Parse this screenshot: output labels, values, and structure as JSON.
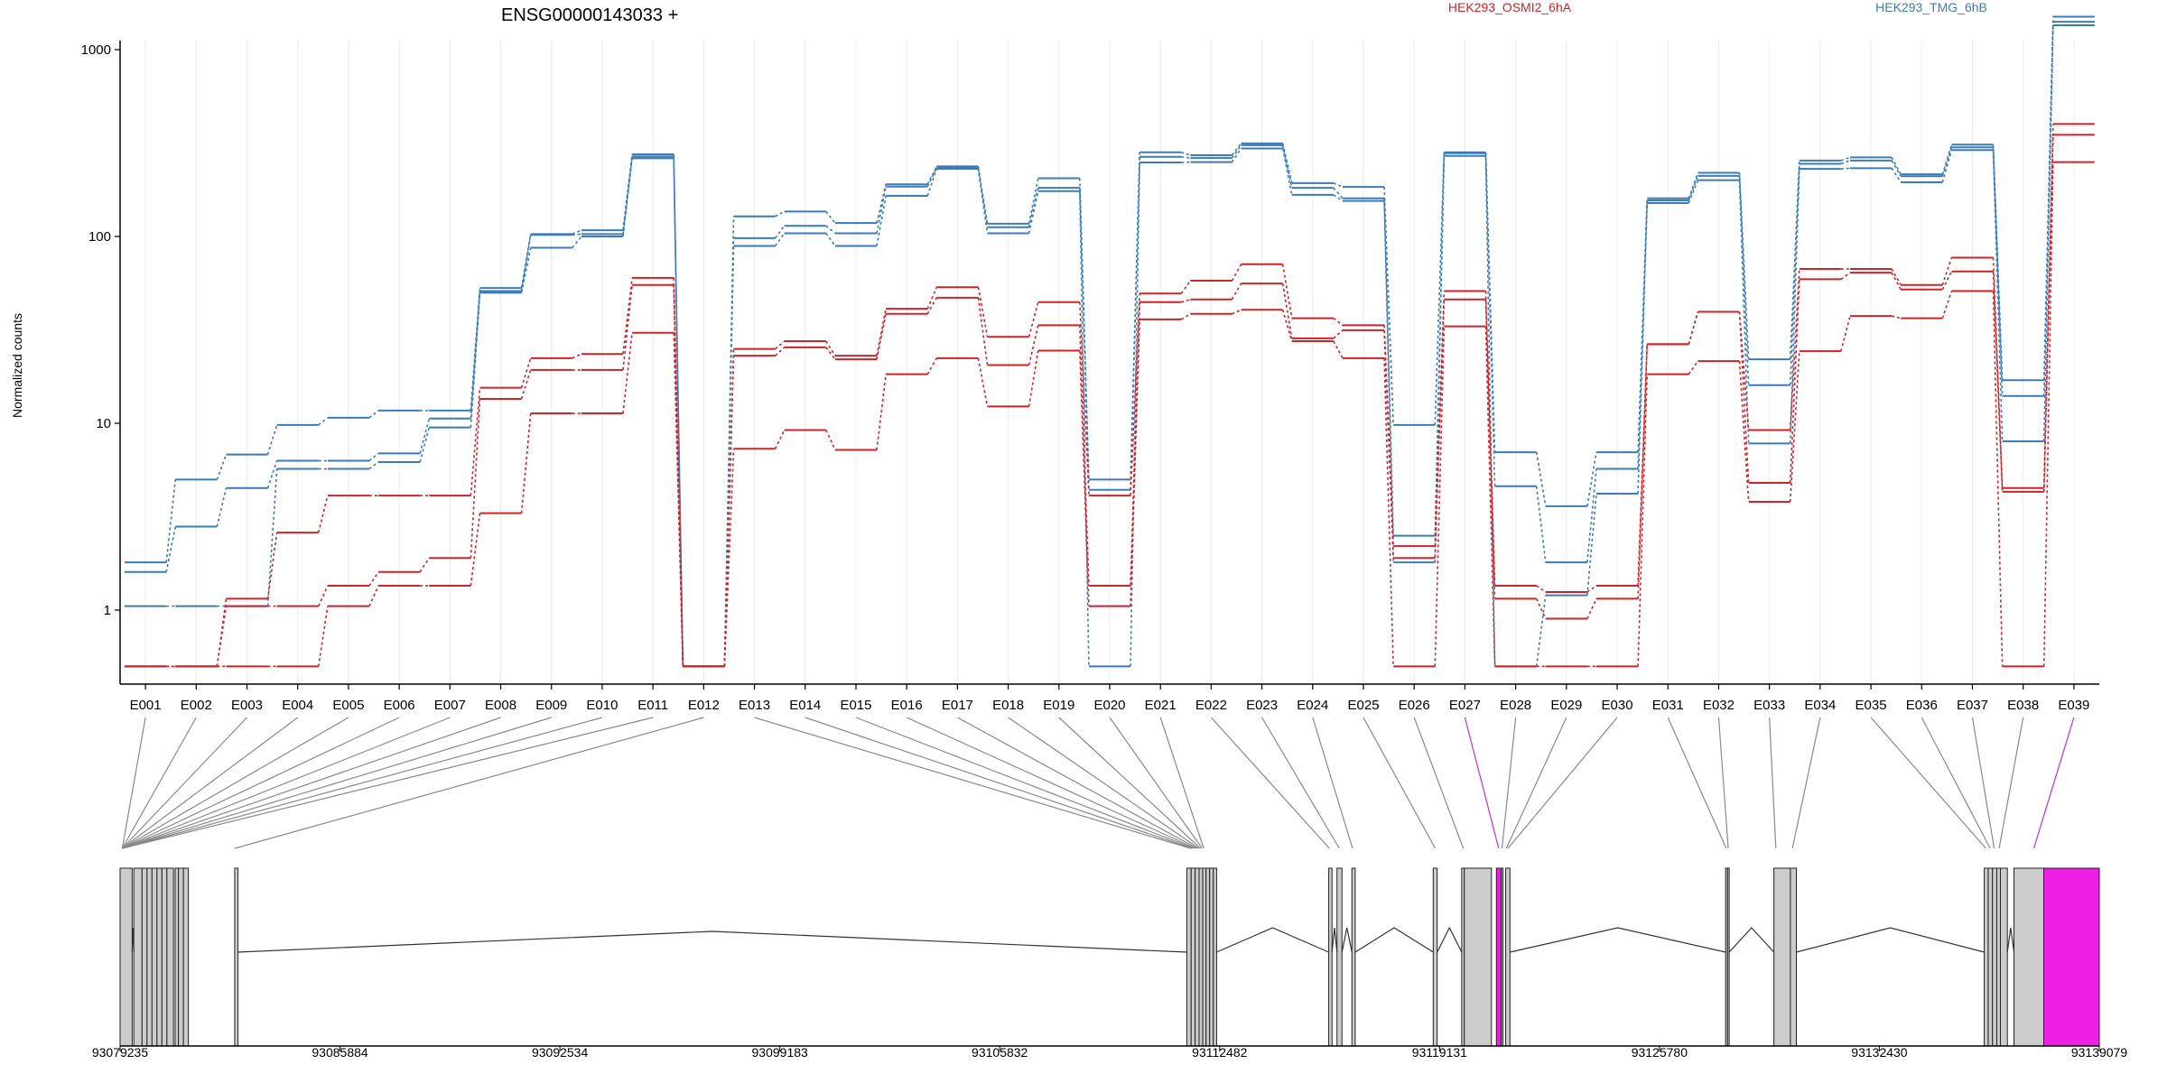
{
  "chart_data": {
    "type": "line",
    "title": "ENSG00000143033 +",
    "ylabel": "Normalized counts",
    "xlabel": "",
    "y_scale": "log",
    "y_ticks": [
      1,
      10,
      100,
      1000
    ],
    "y_tick_labels": [
      "1",
      "10",
      "100",
      "1000"
    ],
    "grid": "vertical",
    "legend_placement": "top",
    "categories": [
      "E001",
      "E002",
      "E003",
      "E004",
      "E005",
      "E006",
      "E007",
      "E008",
      "E009",
      "E010",
      "E011",
      "E012",
      "E013",
      "E014",
      "E015",
      "E016",
      "E017",
      "E018",
      "E019",
      "E020",
      "E021",
      "E022",
      "E023",
      "E024",
      "E025",
      "E026",
      "E027",
      "E028",
      "E029",
      "E030",
      "E031",
      "E032",
      "E033",
      "E034",
      "E035",
      "E036",
      "E037",
      "E038",
      "E039"
    ],
    "legend": [
      {
        "name": "HEK293_OSMI2_6hA",
        "color": "#cc2529"
      },
      {
        "name": "HEK293_TMG_6hB",
        "color": "#3a7bb8"
      }
    ],
    "series": [
      {
        "name": "",
        "group": "HEK293_TMG_6hB",
        "color": "#3a7bb8",
        "values": [
          1.8,
          5.0,
          6.8,
          9.8,
          10.7,
          11.7,
          11.7,
          53,
          103,
          108,
          275,
          0.5,
          128,
          136,
          118,
          190,
          237,
          117,
          205,
          5.0,
          282,
          272,
          315,
          193,
          184,
          9.8,
          282,
          7.0,
          3.6,
          7.0,
          160,
          219,
          22,
          255,
          265,
          215,
          310,
          17,
          1500
        ]
      },
      {
        "name": "",
        "group": "HEK293_TMG_6hB",
        "color": "#3a7bb8",
        "values": [
          1.6,
          2.8,
          4.5,
          6.3,
          6.3,
          6.9,
          10.6,
          51,
          102,
          103,
          268,
          0.5,
          98,
          114,
          104,
          185,
          233,
          112,
          182,
          4.4,
          267,
          263,
          308,
          182,
          160,
          2.5,
          279,
          4.6,
          1.8,
          5.7,
          156,
          211,
          16,
          245,
          255,
          210,
          300,
          14,
          1410
        ]
      },
      {
        "name": "",
        "group": "HEK293_TMG_6hB",
        "color": "#3a7bb8",
        "values": [
          1.05,
          1.05,
          1.05,
          5.7,
          5.7,
          6.2,
          9.5,
          50,
          87,
          100,
          262,
          0.5,
          89,
          104,
          89,
          165,
          230,
          104,
          175,
          0.5,
          249,
          250,
          296,
          167,
          155,
          1.8,
          270,
          0.5,
          1.2,
          4.2,
          151,
          200,
          7.8,
          230,
          232,
          195,
          290,
          8.0,
          1350
        ]
      },
      {
        "name": "",
        "group": "HEK293_OSMI2_6hA",
        "color": "#cc2529",
        "values": [
          0.5,
          0.5,
          1.15,
          2.6,
          4.1,
          4.1,
          4.1,
          15.5,
          22.3,
          23.5,
          60,
          0.5,
          25,
          27.5,
          23,
          41,
          53.5,
          29,
          44.5,
          4.1,
          49.5,
          58,
          71,
          36.5,
          33.5,
          2.2,
          51,
          1.35,
          1.25,
          1.35,
          26.5,
          39.5,
          9.2,
          67,
          67,
          55,
          77,
          4.5,
          400
        ]
      },
      {
        "name": "",
        "group": "HEK293_OSMI2_6hA",
        "color": "#cc2529",
        "values": [
          0.5,
          0.5,
          1.05,
          1.05,
          1.35,
          1.6,
          1.9,
          13.5,
          19.3,
          19.3,
          55,
          0.5,
          23,
          25.5,
          22,
          38.5,
          47,
          20.5,
          33.5,
          1.35,
          44.5,
          46,
          56,
          28.5,
          31.5,
          1.9,
          46,
          1.15,
          0.9,
          1.15,
          26.5,
          39.5,
          4.8,
          59,
          64,
          52,
          65,
          4.3,
          350
        ]
      },
      {
        "name": "",
        "group": "HEK293_OSMI2_6hA",
        "color": "#cc2529",
        "values": [
          0.5,
          0.5,
          0.5,
          0.5,
          1.05,
          1.35,
          1.35,
          3.3,
          11.3,
          11.3,
          30.5,
          0.5,
          7.3,
          9.2,
          7.2,
          18.3,
          22.3,
          12.3,
          24.5,
          1.05,
          36,
          38.5,
          40.5,
          27.5,
          22.3,
          0.5,
          33,
          0.5,
          0.5,
          0.5,
          18.3,
          21.5,
          3.8,
          24.3,
          37.5,
          36.5,
          51,
          0.5,
          250
        ]
      }
    ],
    "gene_model": {
      "coordinate_ticks": [
        93079235,
        93085884,
        93092534,
        93099183,
        93105832,
        93112482,
        93119131,
        93125780,
        93132430,
        93139079
      ],
      "coordinate_range": [
        93079235,
        93139079
      ],
      "highlighted_exons": [
        "E027",
        "E039"
      ],
      "highlight_color": "#ee1ee5",
      "exon_color": "#cccccc"
    }
  }
}
